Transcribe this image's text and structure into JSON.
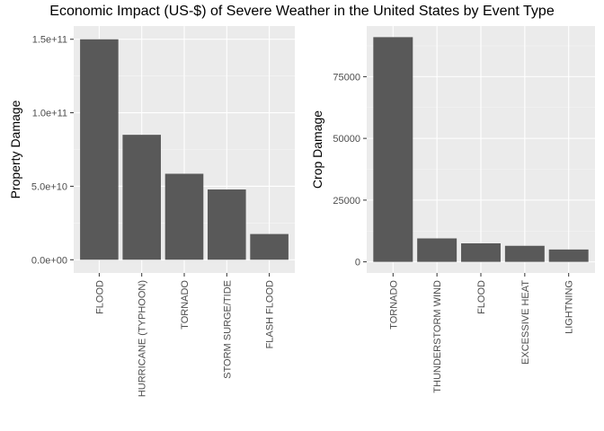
{
  "title": "Economic Impact (US-$) of Severe Weather in the United States by Event Type",
  "chart_data": [
    {
      "type": "bar",
      "ylabel": "Property Damage",
      "xlabel": "",
      "categories": [
        "FLOOD",
        "HURRICANE (TYPHOON)",
        "TORNADO",
        "STORM SURGE/TIDE",
        "FLASH FLOOD"
      ],
      "values": [
        150000000000,
        85000000000,
        58500000000,
        47800000000,
        17500000000
      ],
      "ylim": [
        -9000000000,
        159000000000
      ],
      "yticks": [
        0,
        50000000000,
        100000000000,
        150000000000
      ],
      "ytick_labels": [
        "0.0e+00",
        "5.0e+10",
        "1.0e+11",
        "1.5e+11"
      ],
      "bar_color": "#595959",
      "panel_bg": "#ebebeb",
      "grid": true
    },
    {
      "type": "bar",
      "ylabel": "Crop Damage",
      "xlabel": "",
      "categories": [
        "TORNADO",
        "THUNDERSTORM WIND",
        "FLOOD",
        "EXCESSIVE HEAT",
        "LIGHTNING"
      ],
      "values": [
        91000,
        9500,
        7500,
        6500,
        5000
      ],
      "ylim": [
        -4500,
        95500
      ],
      "yticks": [
        0,
        25000,
        50000,
        75000
      ],
      "ytick_labels": [
        "0",
        "25000",
        "50000",
        "75000"
      ],
      "bar_color": "#595959",
      "panel_bg": "#ebebeb",
      "grid": true
    }
  ]
}
